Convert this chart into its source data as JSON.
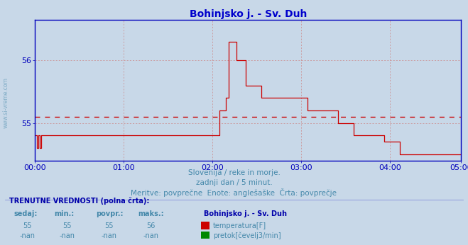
{
  "title": "Bohinjsko j. - Sv. Duh",
  "title_color": "#0000cc",
  "bg_color": "#c8d8e8",
  "plot_bg_color": "#c8d8e8",
  "line_color": "#cc0000",
  "avg_line_color": "#cc0000",
  "avg_value": 55.1,
  "axis_color": "#0000bb",
  "grid_color": "#cc8888",
  "ylim": [
    54.4,
    56.65
  ],
  "yticks": [
    55,
    56
  ],
  "xlim": [
    0,
    288
  ],
  "xticks": [
    0,
    60,
    120,
    180,
    240,
    288
  ],
  "xticklabels": [
    "00:00",
    "01:00",
    "02:00",
    "03:00",
    "04:00",
    "05:00"
  ],
  "subtitle1": "Slovenija / reke in morje.",
  "subtitle2": "zadnji dan / 5 minut.",
  "subtitle3": "Meritve: povprečne  Enote: anglešaške  Črta: povprečje",
  "subtitle_color": "#4488aa",
  "table_header_color": "#0000aa",
  "table_label_color": "#4488aa",
  "legend_title": "Bohinjsko j. - Sv. Duh",
  "watermark_color": "#4488aa",
  "temperature_data": [
    54.8,
    54.6,
    54.8,
    54.6,
    54.8,
    54.8,
    54.8,
    54.8,
    54.8,
    54.8,
    54.8,
    54.8,
    54.8,
    54.8,
    54.8,
    54.8,
    54.8,
    54.8,
    54.8,
    54.8,
    54.8,
    54.8,
    54.8,
    54.8,
    54.8,
    54.8,
    54.8,
    54.8,
    54.8,
    54.8,
    54.8,
    54.8,
    54.8,
    54.8,
    54.8,
    54.8,
    54.8,
    54.8,
    54.8,
    54.8,
    54.8,
    54.8,
    54.8,
    54.8,
    54.8,
    54.8,
    54.8,
    54.8,
    54.8,
    54.8,
    54.8,
    54.8,
    54.8,
    54.8,
    54.8,
    54.8,
    54.8,
    54.8,
    54.8,
    54.8,
    54.8,
    54.8,
    54.8,
    54.8,
    54.8,
    54.8,
    54.8,
    54.8,
    54.8,
    54.8,
    54.8,
    54.8,
    54.8,
    54.8,
    54.8,
    54.8,
    54.8,
    54.8,
    54.8,
    54.8,
    54.8,
    54.8,
    54.8,
    54.8,
    54.8,
    54.8,
    54.8,
    54.8,
    54.8,
    54.8,
    54.8,
    54.8,
    54.8,
    54.8,
    54.8,
    54.8,
    54.8,
    54.8,
    54.8,
    54.8,
    54.8,
    54.8,
    54.8,
    54.8,
    54.8,
    54.8,
    54.8,
    54.8,
    54.8,
    54.8,
    54.8,
    54.8,
    54.8,
    54.8,
    54.8,
    54.8,
    54.8,
    54.8,
    54.8,
    54.8,
    55.2,
    55.2,
    55.2,
    55.2,
    55.4,
    55.4,
    56.3,
    56.3,
    56.3,
    56.3,
    56.3,
    56.0,
    56.0,
    56.0,
    56.0,
    56.0,
    56.0,
    55.6,
    55.6,
    55.6,
    55.6,
    55.6,
    55.6,
    55.6,
    55.6,
    55.6,
    55.6,
    55.4,
    55.4,
    55.4,
    55.4,
    55.4,
    55.4,
    55.4,
    55.4,
    55.4,
    55.4,
    55.4,
    55.4,
    55.4,
    55.4,
    55.4,
    55.4,
    55.4,
    55.4,
    55.4,
    55.4,
    55.4,
    55.4,
    55.4,
    55.4,
    55.4,
    55.4,
    55.4,
    55.4,
    55.4,
    55.4,
    55.2,
    55.2,
    55.2,
    55.2,
    55.2,
    55.2,
    55.2,
    55.2,
    55.2,
    55.2,
    55.2,
    55.2,
    55.2,
    55.2,
    55.2,
    55.2,
    55.2,
    55.2,
    55.2,
    55.2,
    55.0,
    55.0,
    55.0,
    55.0,
    55.0,
    55.0,
    55.0,
    55.0,
    55.0,
    55.0,
    54.8,
    54.8,
    54.8,
    54.8,
    54.8,
    54.8,
    54.8,
    54.8,
    54.8,
    54.8,
    54.8,
    54.8,
    54.8,
    54.8,
    54.8,
    54.8,
    54.8,
    54.8,
    54.8,
    54.8,
    54.7,
    54.7,
    54.7,
    54.7,
    54.7,
    54.7,
    54.7,
    54.7,
    54.7,
    54.7,
    54.5,
    54.5,
    54.5,
    54.5,
    54.5,
    54.5,
    54.5,
    54.5,
    54.5,
    54.5,
    54.5,
    54.5,
    54.5,
    54.5,
    54.5,
    54.5,
    54.5,
    54.5,
    54.5,
    54.5,
    54.5,
    54.5,
    54.5,
    54.5,
    54.5,
    54.5,
    54.5,
    54.5,
    54.5,
    54.5,
    54.5,
    54.5,
    54.5,
    54.5,
    54.5,
    54.5,
    54.5,
    54.5,
    54.5,
    54.5,
    54.5
  ]
}
